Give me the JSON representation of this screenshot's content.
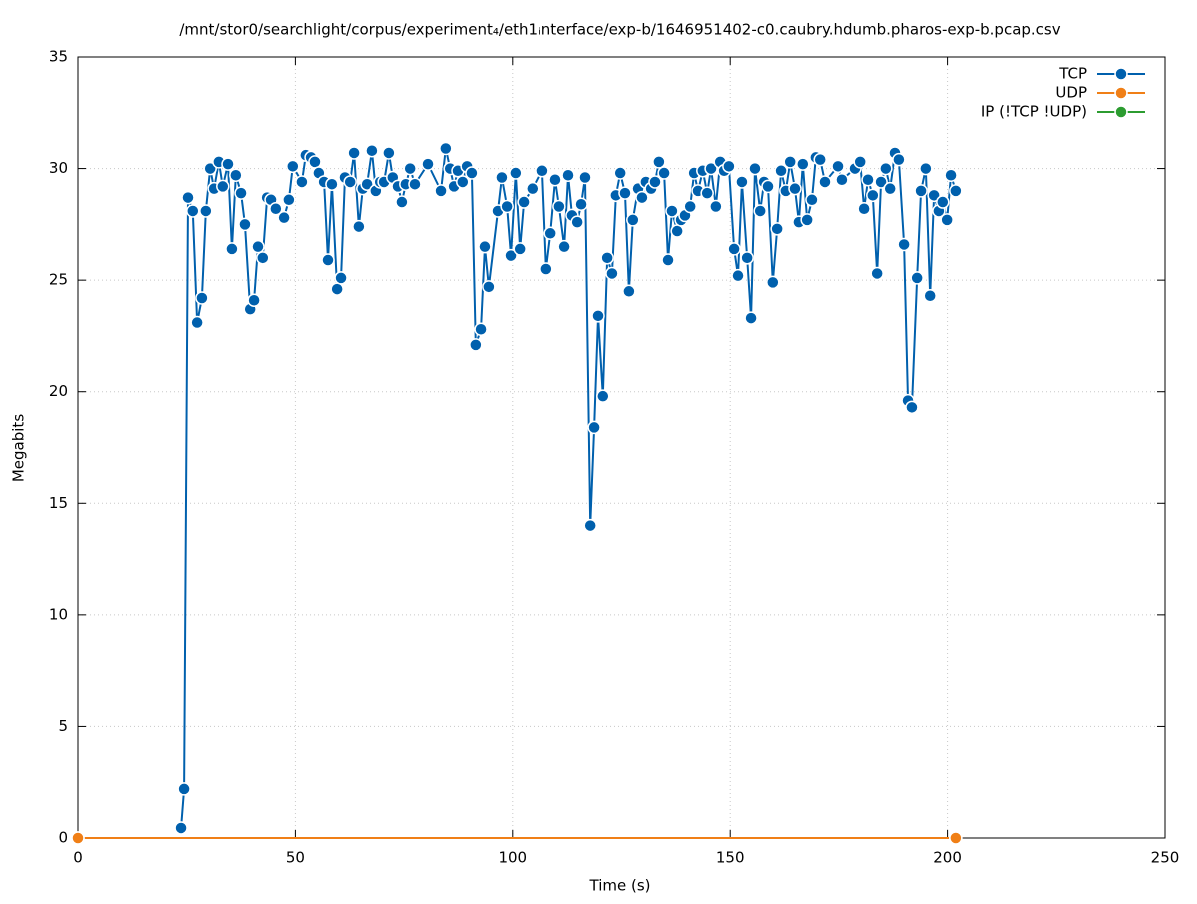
{
  "chart_data": {
    "type": "line",
    "title": "/mnt/stor0/searchlight/corpus/experiment₄/eth1ᵢnterface/exp-b/1646951402-c0.caubry.hdumb.pharos-exp-b.pcap.csv",
    "x_label": "Time (s)",
    "y_label": "Megabits",
    "xlim": [
      0,
      250
    ],
    "xticks": [
      0,
      50,
      100,
      150,
      200,
      250
    ],
    "ylim": [
      0,
      35
    ],
    "yticks": [
      0,
      5,
      10,
      15,
      20,
      25,
      30,
      35
    ],
    "grid": true,
    "legend": "top-right",
    "series": [
      {
        "name": "TCP",
        "color": "#0060ad",
        "x": [
          23.7,
          24.4,
          25.3,
          26.4,
          27.4,
          28.5,
          29.4,
          30.4,
          31.3,
          32.4,
          33.3,
          34.5,
          35.4,
          36.3,
          37.5,
          38.4,
          39.6,
          40.5,
          41.4,
          42.5,
          43.5,
          44.4,
          45.5,
          47.4,
          48.5,
          49.4,
          51.5,
          52.4,
          53.6,
          54.5,
          55.4,
          56.6,
          57.5,
          58.4,
          59.6,
          60.5,
          61.4,
          62.6,
          63.5,
          64.6,
          65.5,
          66.5,
          67.6,
          68.5,
          69.5,
          70.4,
          71.5,
          72.4,
          73.6,
          74.5,
          75.4,
          76.4,
          77.5,
          80.5,
          83.5,
          84.6,
          85.6,
          86.5,
          87.4,
          88.5,
          89.5,
          90.6,
          91.5,
          92.7,
          93.6,
          94.5,
          96.6,
          97.5,
          98.7,
          99.6,
          100.7,
          101.7,
          102.6,
          104.6,
          106.7,
          107.6,
          108.6,
          109.7,
          110.6,
          111.8,
          112.7,
          113.6,
          114.8,
          115.7,
          116.6,
          117.8,
          118.7,
          119.6,
          120.7,
          121.7,
          122.8,
          123.7,
          124.7,
          125.8,
          126.7,
          127.6,
          128.8,
          129.7,
          130.6,
          131.8,
          132.7,
          133.6,
          134.8,
          135.7,
          136.6,
          137.8,
          138.7,
          139.6,
          140.8,
          141.7,
          142.6,
          143.7,
          144.7,
          145.6,
          146.7,
          147.7,
          148.6,
          149.7,
          150.9,
          151.8,
          152.7,
          153.9,
          154.8,
          155.7,
          156.9,
          157.8,
          158.7,
          159.8,
          160.8,
          161.7,
          162.8,
          163.8,
          164.9,
          165.8,
          166.7,
          167.7,
          168.8,
          169.7,
          170.7,
          171.8,
          174.8,
          175.7,
          178.7,
          179.9,
          180.8,
          181.7,
          182.8,
          183.8,
          184.7,
          185.8,
          186.8,
          187.9,
          188.8,
          190.0,
          190.9,
          191.8,
          193.0,
          193.9,
          195.0,
          196.0,
          196.9,
          198.0,
          198.9,
          199.9,
          200.8,
          201.9
        ],
        "values": [
          0.45,
          2.2,
          28.7,
          28.1,
          23.1,
          24.2,
          28.1,
          30.0,
          29.1,
          30.3,
          29.2,
          30.2,
          26.4,
          29.7,
          28.9,
          27.5,
          23.7,
          24.1,
          26.5,
          26.0,
          28.7,
          28.6,
          28.2,
          27.8,
          28.6,
          30.1,
          29.4,
          30.6,
          30.5,
          30.3,
          29.8,
          29.4,
          25.9,
          29.3,
          24.6,
          25.1,
          29.6,
          29.4,
          30.7,
          27.4,
          29.1,
          29.3,
          30.8,
          29.0,
          29.4,
          29.4,
          30.7,
          29.6,
          29.2,
          28.5,
          29.3,
          30.0,
          29.3,
          30.2,
          29.0,
          30.9,
          30.0,
          29.2,
          29.9,
          29.4,
          30.1,
          29.8,
          22.1,
          22.8,
          26.5,
          24.7,
          28.1,
          29.6,
          28.3,
          26.1,
          29.8,
          26.4,
          28.5,
          29.1,
          29.9,
          25.5,
          27.1,
          29.5,
          28.3,
          26.5,
          29.7,
          27.9,
          27.6,
          28.4,
          29.6,
          14.0,
          18.4,
          23.4,
          19.8,
          26.0,
          25.3,
          28.8,
          29.8,
          28.9,
          24.5,
          27.7,
          29.1,
          28.7,
          29.4,
          29.1,
          29.4,
          30.3,
          29.8,
          25.9,
          28.1,
          27.2,
          27.7,
          27.9,
          28.3,
          29.8,
          29.0,
          29.9,
          28.9,
          30.0,
          28.3,
          30.3,
          29.9,
          30.1,
          26.4,
          25.2,
          29.4,
          26.0,
          23.3,
          30.0,
          28.1,
          29.4,
          29.2,
          24.9,
          27.3,
          29.9,
          29.0,
          30.3,
          29.1,
          27.6,
          30.2,
          27.7,
          28.6,
          30.5,
          30.4,
          29.4,
          30.1,
          29.5,
          30.0,
          30.3,
          28.2,
          29.5,
          28.8,
          25.3,
          29.4,
          30.0,
          29.1,
          30.7,
          30.4,
          26.6,
          19.6,
          19.3,
          25.1,
          29.0,
          30.0,
          24.3,
          28.8,
          28.1,
          28.5,
          27.7,
          29.7,
          29.0
        ]
      },
      {
        "name": "UDP",
        "color": "#f07f16",
        "x": [
          0,
          201.9
        ],
        "values": [
          0,
          0
        ]
      },
      {
        "name": "IP (!TCP  !UDP)",
        "color": "#2c9c30",
        "x": [
          0,
          201.9
        ],
        "values": [
          0,
          0
        ]
      }
    ]
  }
}
